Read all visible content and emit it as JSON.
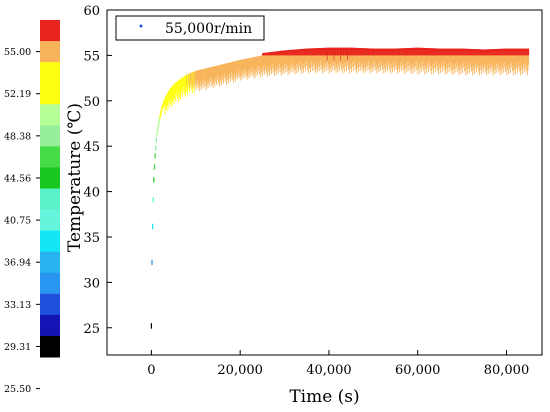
{
  "chart_data": {
    "type": "scatter",
    "xlabel": "Time (s)",
    "ylabel": "Temperature (℃)",
    "xlim": [
      -10000,
      88000
    ],
    "ylim": [
      22,
      60
    ],
    "x_ticks": [
      0,
      20000,
      40000,
      60000,
      80000
    ],
    "x_tick_labels": [
      "0",
      "20,000",
      "40,000",
      "60,000",
      "80,000"
    ],
    "y_ticks": [
      25,
      30,
      35,
      40,
      45,
      50,
      55,
      60
    ],
    "y_tick_labels": [
      "25",
      "30",
      "35",
      "40",
      "45",
      "50",
      "55",
      "60"
    ],
    "legend": {
      "position": "top-left",
      "entries": [
        "55,000r/min"
      ]
    },
    "series": [
      {
        "name": "55,000r/min",
        "x": [
          0,
          150,
          300,
          500,
          800,
          1200,
          1700,
          2300,
          3000,
          4000,
          5000,
          6500,
          8000,
          10000,
          12500,
          15000,
          17500,
          20000,
          25000,
          30000,
          35000,
          40000,
          45000,
          50000,
          55000,
          60000,
          65000,
          70000,
          75000,
          80000,
          85000
        ],
        "y": [
          25.5,
          33,
          37,
          41,
          44,
          46.5,
          48,
          49.3,
          50.3,
          51.2,
          51.8,
          52.4,
          52.9,
          53.3,
          53.6,
          53.9,
          54.2,
          54.5,
          55,
          55.3,
          55.5,
          55.6,
          55.6,
          55.5,
          55.5,
          55.6,
          55.5,
          55.5,
          55.4,
          55.5,
          55.5
        ],
        "y_min": [
          25.5,
          33,
          37,
          41,
          44,
          46.5,
          47.5,
          48,
          48.5,
          49,
          49.5,
          50,
          50.5,
          51,
          51.2,
          51.5,
          51.8,
          52.2,
          52.6,
          52.8,
          53,
          53,
          53,
          53,
          53,
          52.9,
          52.9,
          52.8,
          52.8,
          52.8,
          52.8
        ]
      }
    ],
    "colorbar": {
      "labels": [
        "55.00",
        "52.19",
        "48.38",
        "44.56",
        "40.75",
        "36.94",
        "33.13",
        "29.31",
        "25.50"
      ],
      "bands": [
        {
          "lo": 55.0,
          "hi": 58.0,
          "color": "#e8231e"
        },
        {
          "lo": 52.19,
          "hi": 55.0,
          "color": "#f7b45a"
        },
        {
          "lo": 50.3,
          "hi": 52.19,
          "color": "#ffff14"
        },
        {
          "lo": 48.38,
          "hi": 50.3,
          "color": "#ffff14"
        },
        {
          "lo": 46.5,
          "hi": 48.38,
          "color": "#b4ff96"
        },
        {
          "lo": 44.56,
          "hi": 46.5,
          "color": "#96f09b"
        },
        {
          "lo": 42.6,
          "hi": 44.56,
          "color": "#46dc46"
        },
        {
          "lo": 40.75,
          "hi": 42.6,
          "color": "#19c81e"
        },
        {
          "lo": 38.85,
          "hi": 40.75,
          "color": "#5af0c8"
        },
        {
          "lo": 36.94,
          "hi": 38.85,
          "color": "#64f5dc"
        },
        {
          "lo": 35.0,
          "hi": 36.94,
          "color": "#14e6f5"
        },
        {
          "lo": 33.13,
          "hi": 35.0,
          "color": "#28b4f0"
        },
        {
          "lo": 31.2,
          "hi": 33.13,
          "color": "#2896f0"
        },
        {
          "lo": 29.31,
          "hi": 31.2,
          "color": "#1e50dc"
        },
        {
          "lo": 27.4,
          "hi": 29.31,
          "color": "#1414b4"
        },
        {
          "lo": 25.5,
          "hi": 27.4,
          "color": "#000000"
        }
      ]
    }
  }
}
